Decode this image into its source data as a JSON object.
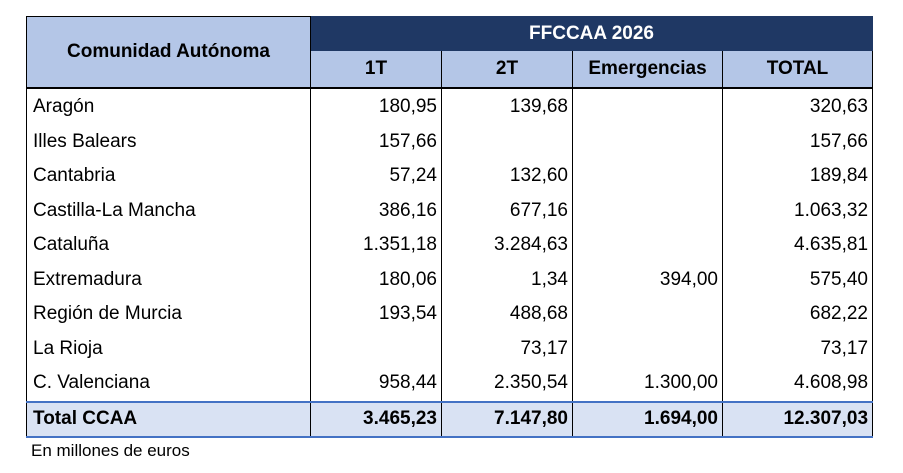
{
  "table": {
    "row_header": "Comunidad Autónoma",
    "group_header": "FFCCAA 2026",
    "columns": [
      "1T",
      "2T",
      "Emergencias",
      "TOTAL"
    ],
    "rows": [
      {
        "name": "Aragón",
        "t1": "180,95",
        "t2": "139,68",
        "emergencias": "",
        "total": "320,63"
      },
      {
        "name": "Illes Balears",
        "t1": "157,66",
        "t2": "",
        "emergencias": "",
        "total": "157,66"
      },
      {
        "name": "Cantabria",
        "t1": "57,24",
        "t2": "132,60",
        "emergencias": "",
        "total": "189,84"
      },
      {
        "name": "Castilla-La Mancha",
        "t1": "386,16",
        "t2": "677,16",
        "emergencias": "",
        "total": "1.063,32"
      },
      {
        "name": "Cataluña",
        "t1": "1.351,18",
        "t2": "3.284,63",
        "emergencias": "",
        "total": "4.635,81"
      },
      {
        "name": "Extremadura",
        "t1": "180,06",
        "t2": "1,34",
        "emergencias": "394,00",
        "total": "575,40"
      },
      {
        "name": "Región de Murcia",
        "t1": "193,54",
        "t2": "488,68",
        "emergencias": "",
        "total": "682,22"
      },
      {
        "name": "La Rioja",
        "t1": "",
        "t2": "73,17",
        "emergencias": "",
        "total": "73,17"
      },
      {
        "name": "C. Valenciana",
        "t1": "958,44",
        "t2": "2.350,54",
        "emergencias": "1.300,00",
        "total": "4.608,98"
      }
    ],
    "total_row": {
      "name": "Total CCAA",
      "t1": "3.465,23",
      "t2": "7.147,80",
      "emergencias": "1.694,00",
      "total": "12.307,03"
    }
  },
  "footnote": "En millones de euros",
  "colors": {
    "header_dark": "#1f3864",
    "header_light": "#b4c6e7",
    "total_fill": "#d9e2f3",
    "total_border": "#4472c4"
  }
}
